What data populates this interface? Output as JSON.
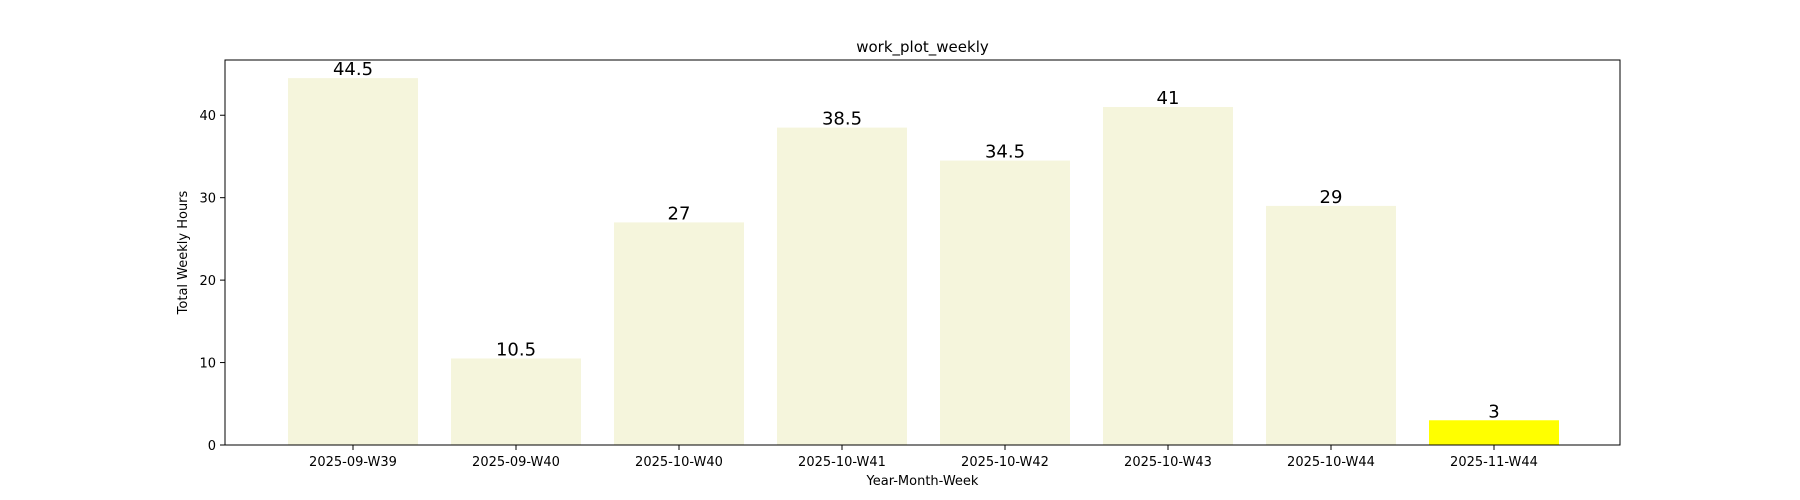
{
  "chart_data": {
    "type": "bar",
    "title": "work_plot_weekly",
    "xlabel": "Year-Month-Week",
    "ylabel": "Total Weekly Hours",
    "categories": [
      "2025-09-W39",
      "2025-09-W40",
      "2025-10-W40",
      "2025-10-W41",
      "2025-10-W42",
      "2025-10-W43",
      "2025-10-W44",
      "2025-11-W44"
    ],
    "values": [
      44.5,
      10.5,
      27,
      38.5,
      34.5,
      41,
      29,
      3
    ],
    "value_labels": [
      "44.5",
      "10.5",
      "27",
      "38.5",
      "34.5",
      "41",
      "29",
      "3"
    ],
    "bar_colors": [
      "#f5f5dc",
      "#f5f5dc",
      "#f5f5dc",
      "#f5f5dc",
      "#f5f5dc",
      "#f5f5dc",
      "#f5f5dc",
      "#ffff00"
    ],
    "ylim": [
      0,
      46.7
    ],
    "yticks": [
      0,
      10,
      20,
      30,
      40
    ],
    "grid": false,
    "legend": "none"
  }
}
